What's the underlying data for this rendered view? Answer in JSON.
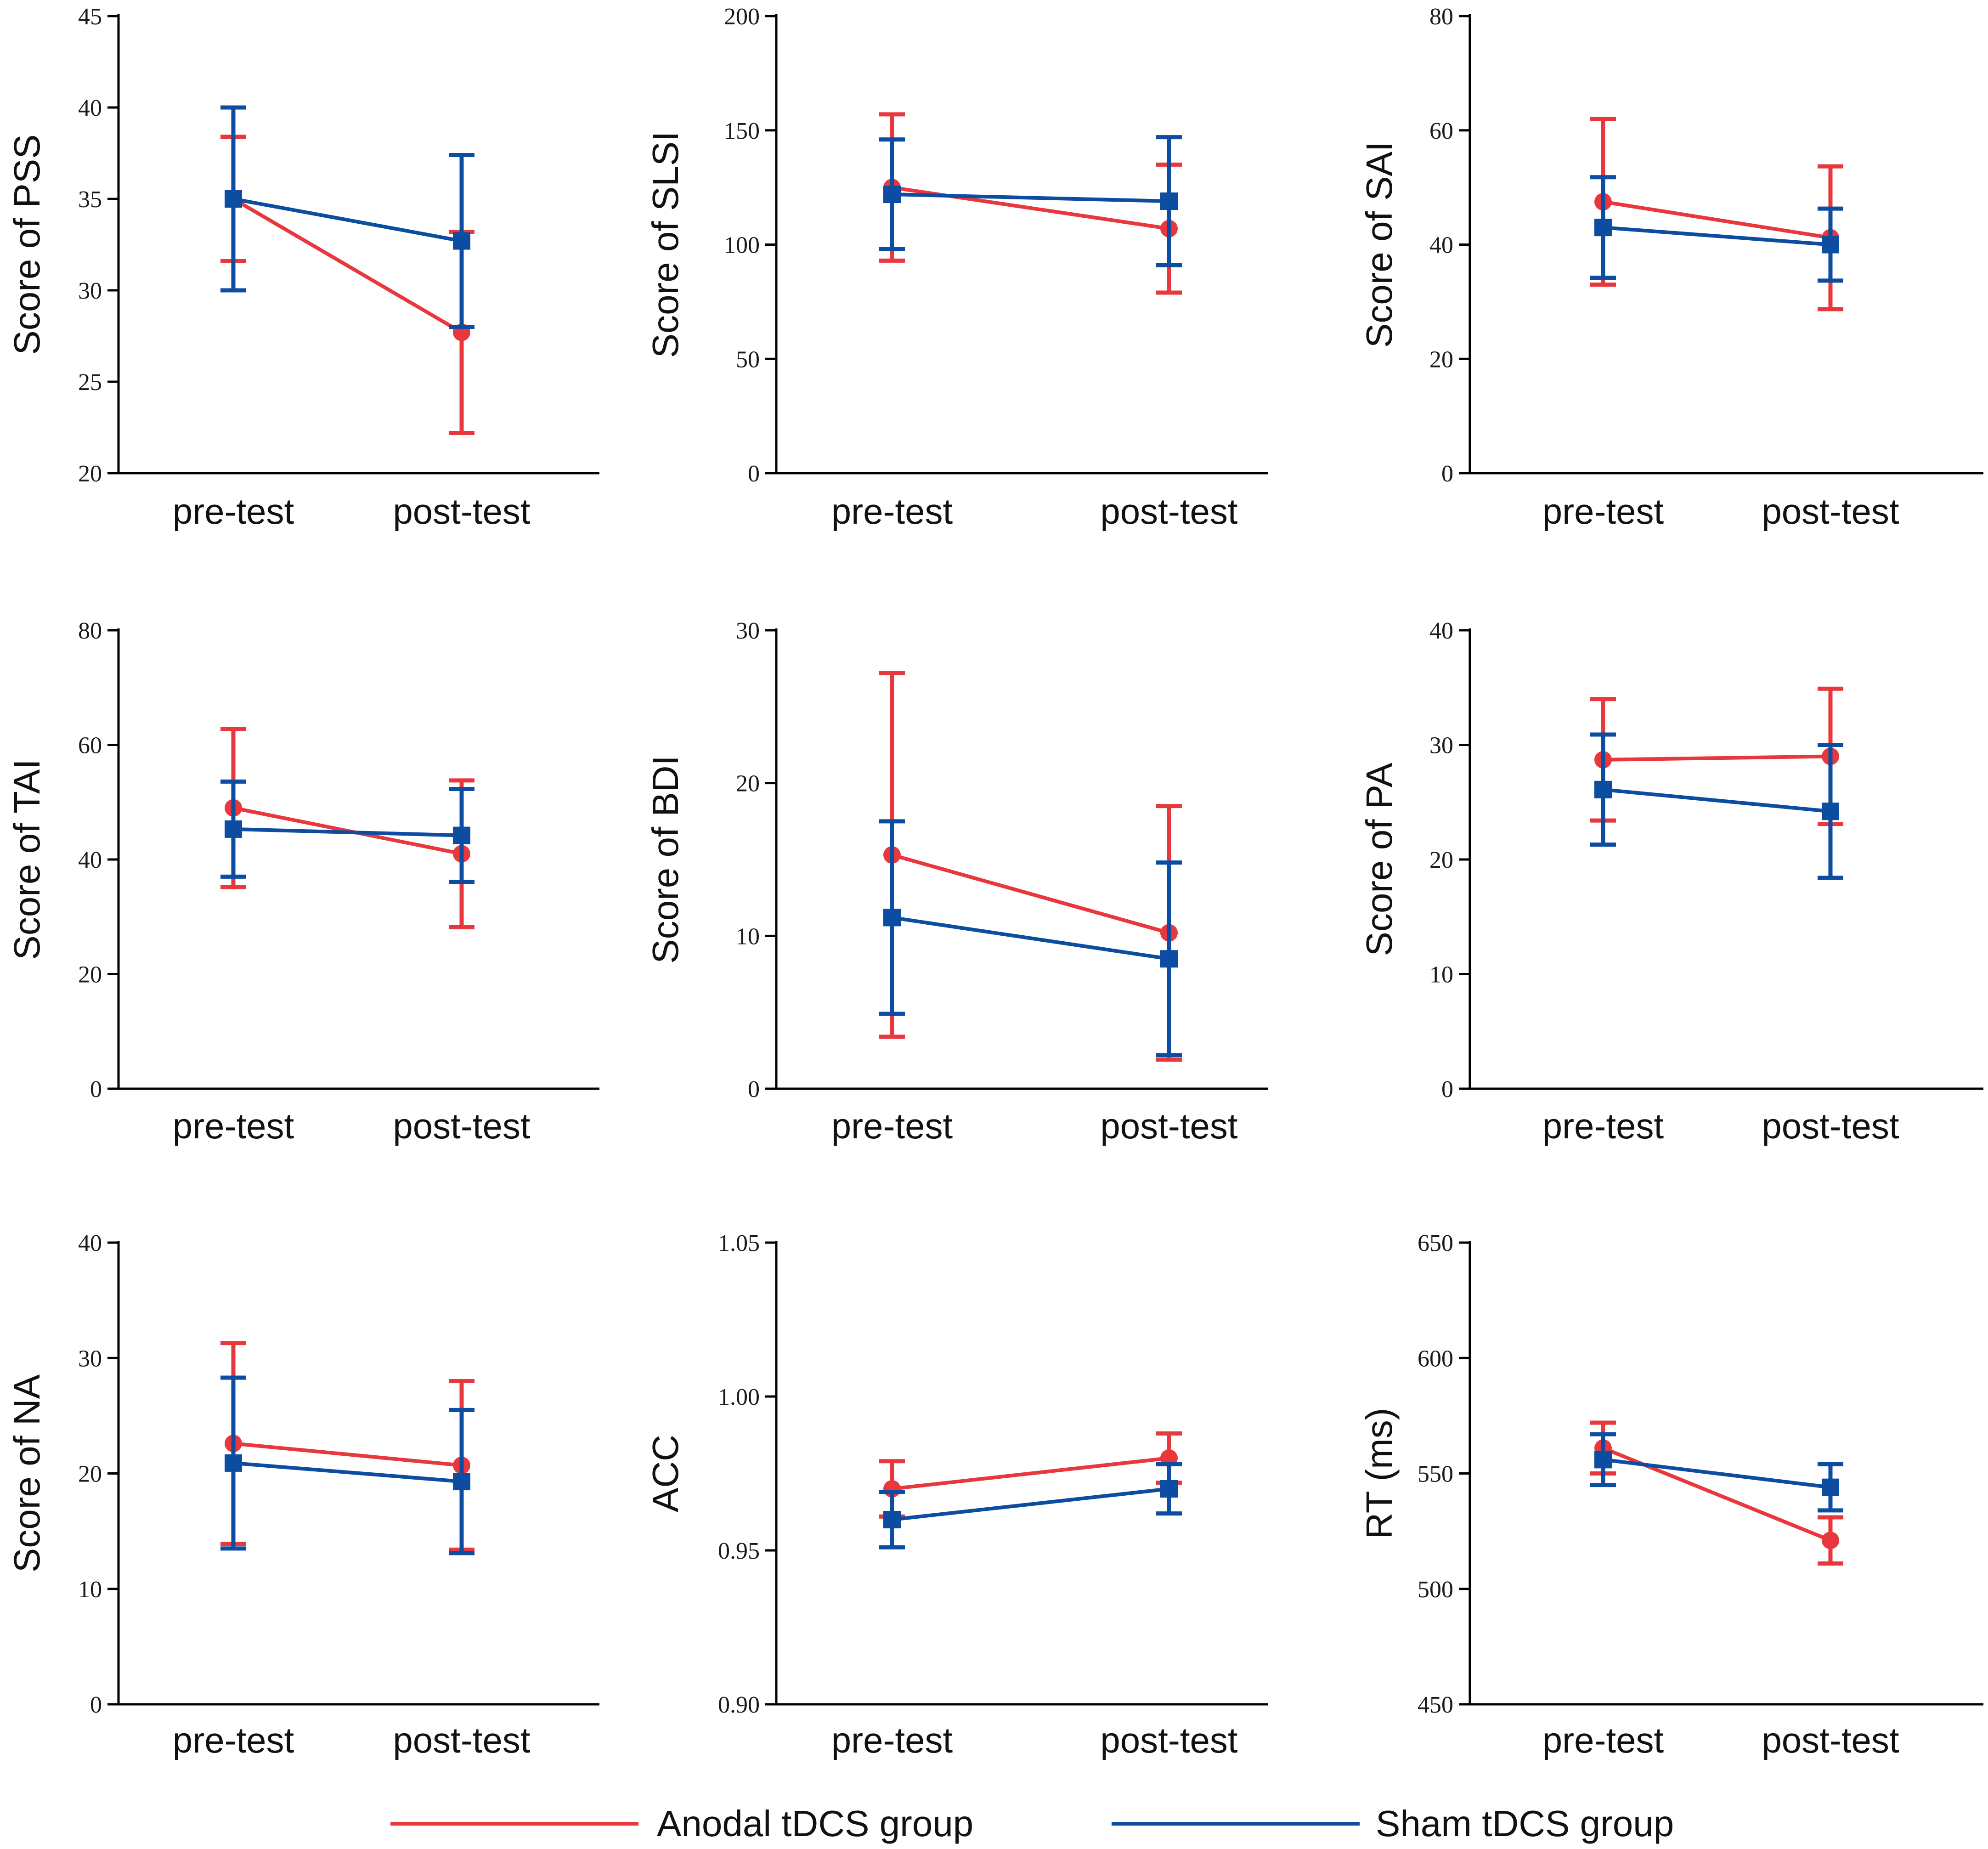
{
  "figure": {
    "legend": [
      {
        "name": "Anodal tDCS group",
        "color": "#E8383D"
      },
      {
        "name": "Sham tDCS group",
        "color": "#0C4DA2"
      }
    ]
  },
  "chart_data": [
    {
      "type": "line",
      "ylabel": "Score of PSS",
      "ylim": [
        20,
        45
      ],
      "yticks": [
        "20",
        "25",
        "30",
        "35",
        "40",
        "45"
      ],
      "categories": [
        "pre-test",
        "post-test"
      ],
      "series": [
        {
          "name": "Anodal tDCS group",
          "values": [
            35.0,
            27.7
          ],
          "error": [
            3.4,
            5.5
          ]
        },
        {
          "name": "Sham tDCS group",
          "values": [
            35.0,
            32.7
          ],
          "error": [
            5.0,
            4.7
          ]
        }
      ]
    },
    {
      "type": "line",
      "ylabel": "Score of SLSI",
      "ylim": [
        0,
        200
      ],
      "yticks": [
        "0",
        "50",
        "100",
        "150",
        "200"
      ],
      "categories": [
        "pre-test",
        "post-test"
      ],
      "series": [
        {
          "name": "Anodal tDCS group",
          "values": [
            125,
            107
          ],
          "error": [
            32,
            28
          ]
        },
        {
          "name": "Sham tDCS group",
          "values": [
            122,
            119
          ],
          "error": [
            24,
            28
          ]
        }
      ]
    },
    {
      "type": "line",
      "ylabel": "Score of SAI",
      "ylim": [
        0,
        80
      ],
      "yticks": [
        "0",
        "20",
        "40",
        "60",
        "80"
      ],
      "categories": [
        "pre-test",
        "post-test"
      ],
      "series": [
        {
          "name": "Anodal tDCS group",
          "values": [
            47.5,
            41.2
          ],
          "error": [
            14.5,
            12.5
          ]
        },
        {
          "name": "Sham tDCS group",
          "values": [
            43.0,
            40.0
          ],
          "error": [
            8.8,
            6.3
          ]
        }
      ]
    },
    {
      "type": "line",
      "ylabel": "Score of TAI",
      "ylim": [
        0,
        80
      ],
      "yticks": [
        "0",
        "20",
        "40",
        "60",
        "80"
      ],
      "categories": [
        "pre-test",
        "post-test"
      ],
      "series": [
        {
          "name": "Anodal tDCS group",
          "values": [
            49.0,
            41.0
          ],
          "error": [
            13.8,
            12.8
          ]
        },
        {
          "name": "Sham tDCS group",
          "values": [
            45.3,
            44.2
          ],
          "error": [
            8.3,
            8.1
          ]
        }
      ]
    },
    {
      "type": "line",
      "ylabel": "Score of BDI",
      "ylim": [
        0,
        30
      ],
      "yticks": [
        "0",
        "10",
        "20",
        "30"
      ],
      "categories": [
        "pre-test",
        "post-test"
      ],
      "series": [
        {
          "name": "Anodal tDCS group",
          "values": [
            15.3,
            10.2
          ],
          "error": [
            11.9,
            8.3
          ]
        },
        {
          "name": "Sham tDCS group",
          "values": [
            11.2,
            8.5
          ],
          "error": [
            6.3,
            6.3
          ]
        }
      ]
    },
    {
      "type": "line",
      "ylabel": "Score of PA",
      "ylim": [
        0,
        40
      ],
      "yticks": [
        "0",
        "10",
        "20",
        "30",
        "40"
      ],
      "categories": [
        "pre-test",
        "post-test"
      ],
      "series": [
        {
          "name": "Anodal tDCS group",
          "values": [
            28.7,
            29.0
          ],
          "error": [
            5.3,
            5.9
          ]
        },
        {
          "name": "Sham tDCS group",
          "values": [
            26.1,
            24.2
          ],
          "error": [
            4.8,
            5.8
          ]
        }
      ]
    },
    {
      "type": "line",
      "ylabel": "Score of NA",
      "ylim": [
        0,
        40
      ],
      "yticks": [
        "0",
        "10",
        "20",
        "30",
        "40"
      ],
      "categories": [
        "pre-test",
        "post-test"
      ],
      "series": [
        {
          "name": "Anodal tDCS group",
          "values": [
            22.6,
            20.7
          ],
          "error": [
            8.7,
            7.3
          ]
        },
        {
          "name": "Sham tDCS group",
          "values": [
            20.9,
            19.3
          ],
          "error": [
            7.4,
            6.2
          ]
        }
      ]
    },
    {
      "type": "line",
      "ylabel": "ACC",
      "ylim": [
        0.9,
        1.05
      ],
      "yticks": [
        "0.90",
        "0.95",
        "1.00",
        "1.05"
      ],
      "categories": [
        "pre-test",
        "post-test"
      ],
      "series": [
        {
          "name": "Anodal tDCS group",
          "values": [
            0.97,
            0.98
          ],
          "error": [
            0.009,
            0.008
          ]
        },
        {
          "name": "Sham tDCS group",
          "values": [
            0.96,
            0.97
          ],
          "error": [
            0.009,
            0.008
          ]
        }
      ]
    },
    {
      "type": "line",
      "ylabel": "RT (ms)",
      "ylim": [
        450,
        650
      ],
      "yticks": [
        "450",
        "500",
        "550",
        "600",
        "650"
      ],
      "categories": [
        "pre-test",
        "post-test"
      ],
      "series": [
        {
          "name": "Anodal tDCS group",
          "values": [
            561,
            521
          ],
          "error": [
            11,
            10
          ]
        },
        {
          "name": "Sham tDCS group",
          "values": [
            556,
            544
          ],
          "error": [
            11,
            10
          ]
        }
      ]
    }
  ]
}
